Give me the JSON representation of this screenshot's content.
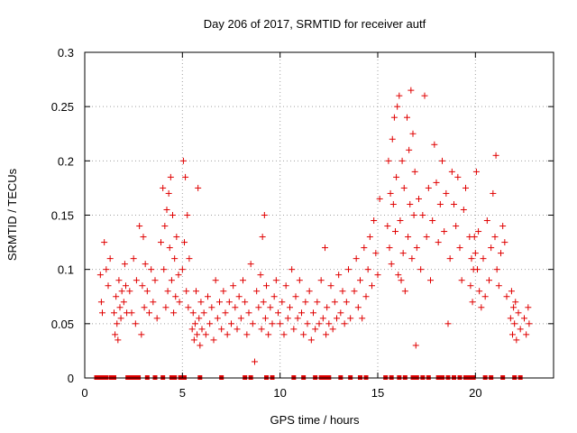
{
  "chart_data": {
    "type": "scatter",
    "title": "Day 206 of 2017, SRMTID for receiver autf",
    "xlabel": "GPS time / hours",
    "ylabel": "SRMTID / TECUs",
    "xlim": [
      0,
      24
    ],
    "ylim": [
      0,
      0.3
    ],
    "xticks": [
      0,
      5,
      10,
      15,
      20
    ],
    "xtick_labels": [
      "0",
      "5",
      "10",
      "15",
      "20"
    ],
    "yticks": [
      0,
      0.05,
      0.1,
      0.15,
      0.2,
      0.25,
      0.3
    ],
    "ytick_labels": [
      "0",
      "0.05",
      "0.1",
      "0.15",
      "0.2",
      "0.25",
      "0.3"
    ],
    "grid": true,
    "marker": "+",
    "color": "#e00000",
    "series": [
      {
        "name": "SRMTID",
        "points": [
          [
            0.8,
            0.095
          ],
          [
            0.85,
            0.07
          ],
          [
            0.9,
            0.06
          ],
          [
            1.0,
            0.125
          ],
          [
            1.1,
            0.1
          ],
          [
            1.2,
            0.085
          ],
          [
            1.3,
            0.11
          ],
          [
            1.5,
            0.06
          ],
          [
            1.55,
            0.04
          ],
          [
            1.6,
            0.075
          ],
          [
            1.65,
            0.05
          ],
          [
            1.7,
            0.035
          ],
          [
            1.75,
            0.09
          ],
          [
            1.8,
            0.065
          ],
          [
            1.85,
            0.055
          ],
          [
            1.9,
            0.08
          ],
          [
            2.0,
            0.07
          ],
          [
            2.05,
            0.105
          ],
          [
            2.1,
            0.085
          ],
          [
            2.15,
            0.06
          ],
          [
            2.3,
            0.08
          ],
          [
            2.4,
            0.06
          ],
          [
            2.5,
            0.11
          ],
          [
            2.6,
            0.05
          ],
          [
            2.65,
            0.09
          ],
          [
            2.8,
            0.14
          ],
          [
            2.9,
            0.04
          ],
          [
            2.95,
            0.085
          ],
          [
            3.0,
            0.13
          ],
          [
            3.05,
            0.065
          ],
          [
            3.1,
            0.105
          ],
          [
            3.2,
            0.08
          ],
          [
            3.3,
            0.06
          ],
          [
            3.4,
            0.1
          ],
          [
            3.5,
            0.07
          ],
          [
            3.6,
            0.09
          ],
          [
            3.7,
            0.055
          ],
          [
            3.9,
            0.125
          ],
          [
            4.0,
            0.175
          ],
          [
            4.05,
            0.1
          ],
          [
            4.1,
            0.14
          ],
          [
            4.15,
            0.065
          ],
          [
            4.2,
            0.155
          ],
          [
            4.25,
            0.08
          ],
          [
            4.3,
            0.17
          ],
          [
            4.35,
            0.12
          ],
          [
            4.4,
            0.185
          ],
          [
            4.45,
            0.09
          ],
          [
            4.5,
            0.15
          ],
          [
            4.55,
            0.06
          ],
          [
            4.6,
            0.11
          ],
          [
            4.65,
            0.075
          ],
          [
            4.7,
            0.13
          ],
          [
            4.8,
            0.095
          ],
          [
            4.85,
            0.07
          ],
          [
            5.0,
            0.1
          ],
          [
            5.05,
            0.2
          ],
          [
            5.1,
            0.125
          ],
          [
            5.15,
            0.185
          ],
          [
            5.2,
            0.08
          ],
          [
            5.25,
            0.15
          ],
          [
            5.3,
            0.065
          ],
          [
            5.35,
            0.11
          ],
          [
            5.5,
            0.045
          ],
          [
            5.55,
            0.06
          ],
          [
            5.6,
            0.035
          ],
          [
            5.65,
            0.05
          ],
          [
            5.7,
            0.08
          ],
          [
            5.75,
            0.04
          ],
          [
            5.8,
            0.175
          ],
          [
            5.85,
            0.055
          ],
          [
            5.9,
            0.03
          ],
          [
            5.95,
            0.07
          ],
          [
            6.0,
            0.045
          ],
          [
            6.1,
            0.06
          ],
          [
            6.2,
            0.04
          ],
          [
            6.3,
            0.075
          ],
          [
            6.4,
            0.05
          ],
          [
            6.5,
            0.065
          ],
          [
            6.6,
            0.035
          ],
          [
            6.7,
            0.09
          ],
          [
            6.8,
            0.055
          ],
          [
            6.9,
            0.07
          ],
          [
            7.0,
            0.045
          ],
          [
            7.1,
            0.08
          ],
          [
            7.2,
            0.06
          ],
          [
            7.3,
            0.04
          ],
          [
            7.4,
            0.07
          ],
          [
            7.5,
            0.05
          ],
          [
            7.6,
            0.085
          ],
          [
            7.7,
            0.065
          ],
          [
            7.8,
            0.045
          ],
          [
            7.9,
            0.075
          ],
          [
            8.0,
            0.055
          ],
          [
            8.1,
            0.09
          ],
          [
            8.2,
            0.07
          ],
          [
            8.3,
            0.04
          ],
          [
            8.4,
            0.06
          ],
          [
            8.5,
            0.105
          ],
          [
            8.6,
            0.05
          ],
          [
            8.7,
            0.015
          ],
          [
            8.8,
            0.08
          ],
          [
            8.9,
            0.065
          ],
          [
            9.0,
            0.095
          ],
          [
            9.05,
            0.045
          ],
          [
            9.1,
            0.13
          ],
          [
            9.15,
            0.07
          ],
          [
            9.2,
            0.15
          ],
          [
            9.25,
            0.055
          ],
          [
            9.3,
            0.085
          ],
          [
            9.4,
            0.04
          ],
          [
            9.5,
            0.065
          ],
          [
            9.6,
            0.05
          ],
          [
            9.7,
            0.075
          ],
          [
            9.8,
            0.09
          ],
          [
            9.9,
            0.06
          ],
          [
            10.0,
            0.05
          ],
          [
            10.1,
            0.07
          ],
          [
            10.2,
            0.04
          ],
          [
            10.3,
            0.085
          ],
          [
            10.4,
            0.055
          ],
          [
            10.5,
            0.065
          ],
          [
            10.6,
            0.1
          ],
          [
            10.7,
            0.045
          ],
          [
            10.8,
            0.075
          ],
          [
            10.9,
            0.055
          ],
          [
            11.0,
            0.09
          ],
          [
            11.1,
            0.06
          ],
          [
            11.2,
            0.04
          ],
          [
            11.3,
            0.07
          ],
          [
            11.4,
            0.05
          ],
          [
            11.5,
            0.08
          ],
          [
            11.6,
            0.035
          ],
          [
            11.7,
            0.06
          ],
          [
            11.8,
            0.045
          ],
          [
            11.9,
            0.07
          ],
          [
            12.0,
            0.05
          ],
          [
            12.1,
            0.09
          ],
          [
            12.2,
            0.055
          ],
          [
            12.3,
            0.12
          ],
          [
            12.35,
            0.04
          ],
          [
            12.4,
            0.065
          ],
          [
            12.5,
            0.05
          ],
          [
            12.6,
            0.085
          ],
          [
            12.7,
            0.045
          ],
          [
            12.8,
            0.07
          ],
          [
            12.9,
            0.055
          ],
          [
            13.0,
            0.095
          ],
          [
            13.1,
            0.06
          ],
          [
            13.2,
            0.08
          ],
          [
            13.3,
            0.05
          ],
          [
            13.4,
            0.07
          ],
          [
            13.5,
            0.1
          ],
          [
            13.6,
            0.055
          ],
          [
            13.8,
            0.08
          ],
          [
            13.9,
            0.11
          ],
          [
            14.0,
            0.065
          ],
          [
            14.1,
            0.09
          ],
          [
            14.2,
            0.055
          ],
          [
            14.3,
            0.12
          ],
          [
            14.4,
            0.075
          ],
          [
            14.5,
            0.1
          ],
          [
            14.6,
            0.13
          ],
          [
            14.7,
            0.085
          ],
          [
            14.8,
            0.145
          ],
          [
            14.9,
            0.115
          ],
          [
            15.0,
            0.095
          ],
          [
            15.1,
            0.165
          ],
          [
            15.5,
            0.14
          ],
          [
            15.55,
            0.2
          ],
          [
            15.6,
            0.12
          ],
          [
            15.65,
            0.17
          ],
          [
            15.7,
            0.105
          ],
          [
            15.75,
            0.22
          ],
          [
            15.8,
            0.16
          ],
          [
            15.85,
            0.24
          ],
          [
            15.9,
            0.135
          ],
          [
            15.95,
            0.185
          ],
          [
            16.0,
            0.25
          ],
          [
            16.05,
            0.095
          ],
          [
            16.1,
            0.26
          ],
          [
            16.15,
            0.145
          ],
          [
            16.2,
            0.09
          ],
          [
            16.25,
            0.2
          ],
          [
            16.3,
            0.115
          ],
          [
            16.35,
            0.175
          ],
          [
            16.4,
            0.08
          ],
          [
            16.5,
            0.24
          ],
          [
            16.55,
            0.13
          ],
          [
            16.6,
            0.21
          ],
          [
            16.65,
            0.16
          ],
          [
            16.7,
            0.265
          ],
          [
            16.75,
            0.11
          ],
          [
            16.8,
            0.225
          ],
          [
            16.85,
            0.15
          ],
          [
            16.9,
            0.19
          ],
          [
            16.95,
            0.03
          ],
          [
            17.0,
            0.12
          ],
          [
            17.1,
            0.165
          ],
          [
            17.2,
            0.1
          ],
          [
            17.3,
            0.15
          ],
          [
            17.4,
            0.26
          ],
          [
            17.5,
            0.13
          ],
          [
            17.6,
            0.175
          ],
          [
            17.7,
            0.09
          ],
          [
            17.8,
            0.145
          ],
          [
            17.9,
            0.215
          ],
          [
            18.0,
            0.18
          ],
          [
            18.1,
            0.125
          ],
          [
            18.2,
            0.16
          ],
          [
            18.3,
            0.2
          ],
          [
            18.4,
            0.135
          ],
          [
            18.5,
            0.17
          ],
          [
            18.6,
            0.05
          ],
          [
            18.7,
            0.11
          ],
          [
            18.8,
            0.19
          ],
          [
            18.9,
            0.16
          ],
          [
            19.0,
            0.14
          ],
          [
            19.1,
            0.185
          ],
          [
            19.2,
            0.12
          ],
          [
            19.3,
            0.09
          ],
          [
            19.4,
            0.155
          ],
          [
            19.5,
            0.175
          ],
          [
            19.7,
            0.13
          ],
          [
            19.75,
            0.085
          ],
          [
            19.8,
            0.11
          ],
          [
            19.85,
            0.07
          ],
          [
            19.9,
            0.1
          ],
          [
            19.95,
            0.13
          ],
          [
            20.0,
            0.115
          ],
          [
            20.05,
            0.19
          ],
          [
            20.1,
            0.1
          ],
          [
            20.15,
            0.135
          ],
          [
            20.2,
            0.08
          ],
          [
            20.3,
            0.065
          ],
          [
            20.4,
            0.11
          ],
          [
            20.5,
            0.075
          ],
          [
            20.6,
            0.145
          ],
          [
            20.7,
            0.09
          ],
          [
            20.8,
            0.12
          ],
          [
            20.9,
            0.17
          ],
          [
            21.0,
            0.13
          ],
          [
            21.05,
            0.205
          ],
          [
            21.1,
            0.1
          ],
          [
            21.2,
            0.085
          ],
          [
            21.3,
            0.115
          ],
          [
            21.4,
            0.14
          ],
          [
            21.5,
            0.125
          ],
          [
            21.6,
            0.075
          ],
          [
            21.8,
            0.055
          ],
          [
            21.85,
            0.08
          ],
          [
            21.9,
            0.04
          ],
          [
            21.95,
            0.065
          ],
          [
            22.0,
            0.05
          ],
          [
            22.05,
            0.07
          ],
          [
            22.1,
            0.035
          ],
          [
            22.2,
            0.06
          ],
          [
            22.3,
            0.045
          ],
          [
            22.5,
            0.055
          ],
          [
            22.6,
            0.04
          ],
          [
            22.7,
            0.065
          ],
          [
            22.75,
            0.05
          ]
        ]
      },
      {
        "name": "zero-markers",
        "x": [
          0.6,
          0.75,
          0.9,
          1.1,
          1.35,
          1.5,
          2.2,
          2.35,
          2.5,
          2.6,
          2.75,
          3.2,
          3.6,
          4.0,
          4.45,
          4.6,
          4.9,
          5.1,
          5.9,
          7.0,
          8.2,
          8.5,
          9.3,
          9.6,
          10.7,
          11.2,
          11.8,
          12.1,
          12.3,
          12.5,
          13.1,
          13.6,
          14.1,
          14.4,
          15.4,
          15.7,
          16.1,
          16.4,
          16.8,
          17.0,
          17.3,
          17.6,
          18.1,
          18.3,
          18.6,
          18.9,
          19.2,
          19.5,
          19.7,
          19.9,
          20.5,
          20.8,
          21.4,
          22.0,
          22.3
        ]
      }
    ]
  }
}
